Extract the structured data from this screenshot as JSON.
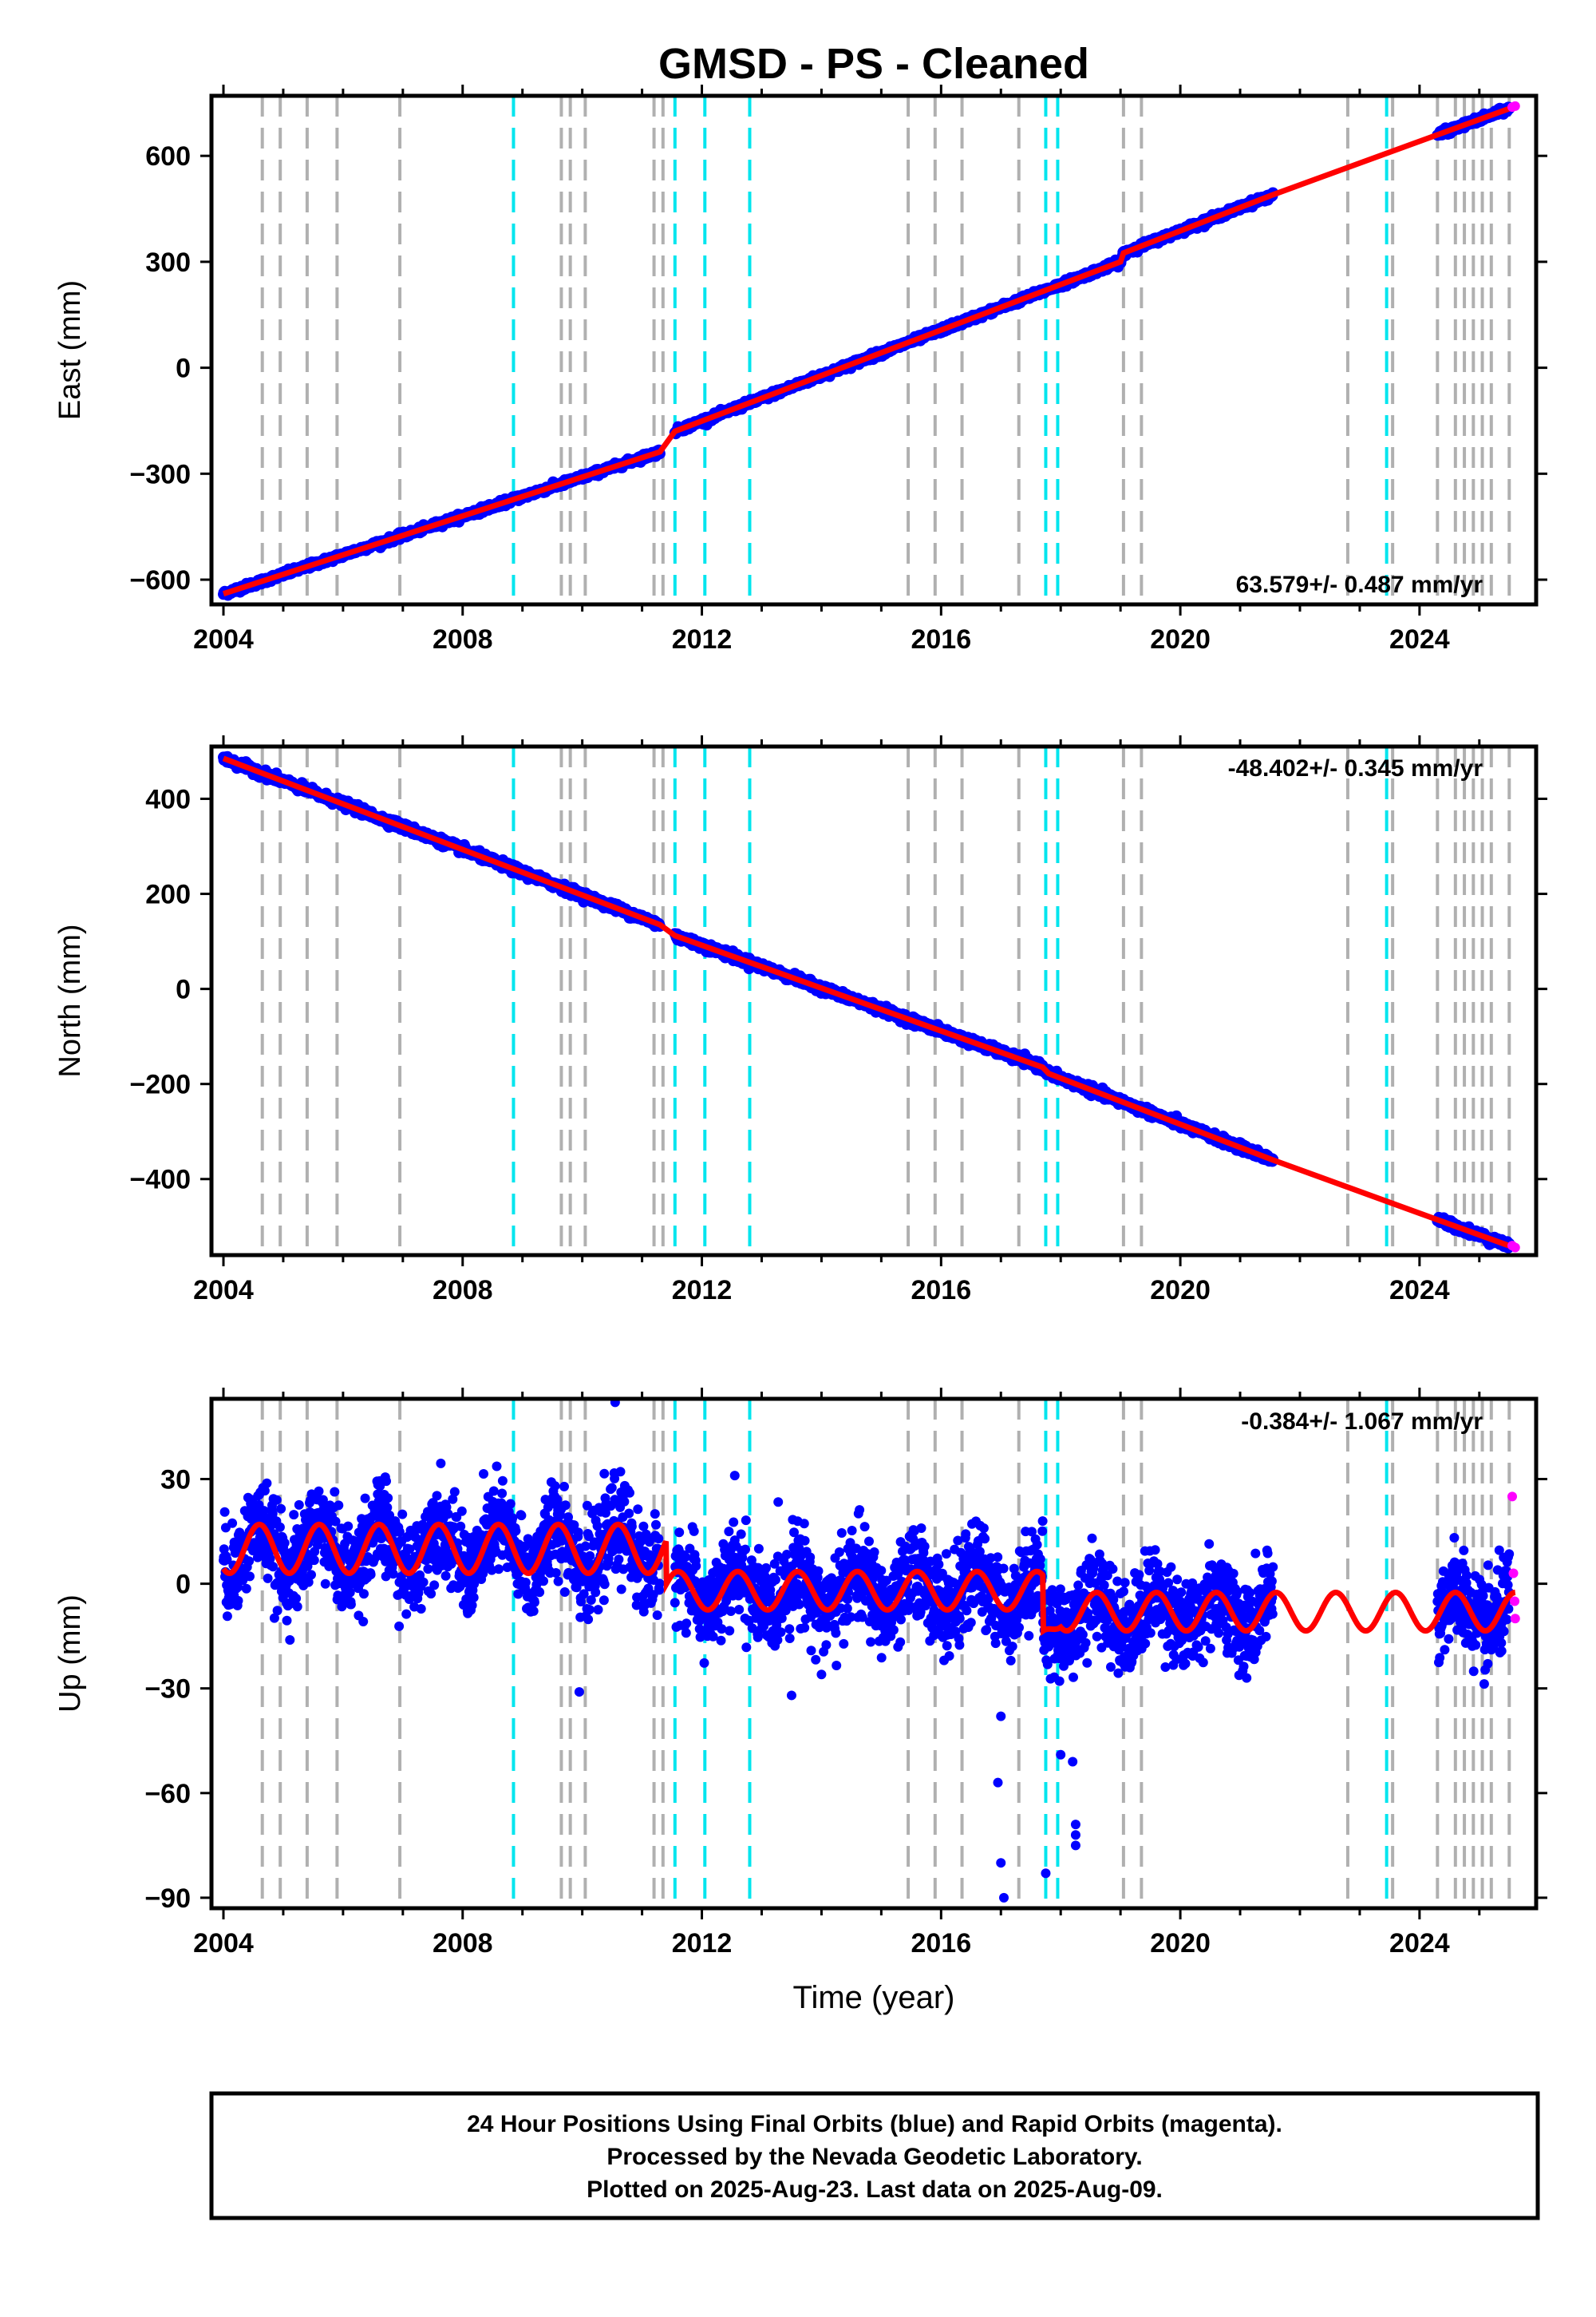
{
  "title": "GMSD  - PS - Cleaned",
  "x_axis_label": "Time (year)",
  "footer": {
    "line1": "24 Hour Positions Using Final Orbits (blue) and Rapid Orbits (magenta).",
    "line2": "Processed by the Nevada Geodetic Laboratory.",
    "line3": "Plotted on 2025-Aug-23. Last data on 2025-Aug-09."
  },
  "colors": {
    "final_orbits": "#0000ff",
    "rapid_orbits": "#ff00ff",
    "model": "#ff0000",
    "equipment_change": "#b0b0b0",
    "earthquake": "#00e5ee"
  },
  "chart_data": [
    {
      "type": "scatter",
      "id": "east",
      "ylabel": "East (mm)",
      "rate_label": "63.579+/- 0.487 mm/yr",
      "xlim": [
        2003.8,
        2025.95
      ],
      "ylim": [
        -670,
        770
      ],
      "xticks": [
        2004,
        2008,
        2012,
        2016,
        2020,
        2024
      ],
      "yticks": [
        -600,
        -300,
        0,
        300,
        600
      ],
      "grid": false,
      "series": [
        {
          "name": "Final Orbits",
          "segments": [
            [
              2004.0,
              2011.3
            ],
            [
              2011.55,
              2021.55
            ],
            [
              2024.3,
              2025.5
            ]
          ]
        },
        {
          "name": "Rapid Orbits",
          "x": [
            2025.55,
            2025.6
          ],
          "y": [
            738,
            741
          ]
        },
        {
          "name": "Model",
          "x": [
            2004.0,
            2011.3,
            2011.55,
            2019.0,
            2019.05,
            2021.55,
            2025.6
          ],
          "y": [
            -640,
            -238,
            -180,
            300,
            325,
            490,
            740
          ]
        }
      ]
    },
    {
      "type": "scatter",
      "id": "north",
      "ylabel": "North (mm)",
      "rate_label": "-48.402+/- 0.345 mm/yr",
      "xlim": [
        2003.8,
        2025.95
      ],
      "ylim": [
        -560,
        510
      ],
      "xticks": [
        2004,
        2008,
        2012,
        2016,
        2020,
        2024
      ],
      "yticks": [
        -400,
        -200,
        0,
        200,
        400
      ],
      "grid": false,
      "series": [
        {
          "name": "Final Orbits",
          "segments": [
            [
              2004.0,
              2011.3
            ],
            [
              2011.55,
              2021.55
            ],
            [
              2024.3,
              2025.5
            ]
          ]
        },
        {
          "name": "Rapid Orbits",
          "x": [
            2025.55,
            2025.6
          ],
          "y": [
            -540,
            -544
          ]
        },
        {
          "name": "Model",
          "x": [
            2004.0,
            2011.3,
            2011.55,
            2017.7,
            2017.8,
            2021.55,
            2025.6
          ],
          "y": [
            485,
            135,
            112,
            -165,
            -178,
            -360,
            -545
          ]
        }
      ]
    },
    {
      "type": "scatter",
      "id": "up",
      "ylabel": "Up (mm)",
      "rate_label": "-0.384+/- 1.067 mm/yr",
      "xlim": [
        2003.8,
        2025.95
      ],
      "ylim": [
        -93,
        53
      ],
      "xticks": [
        2004,
        2008,
        2012,
        2016,
        2020,
        2024
      ],
      "yticks": [
        -90,
        -60,
        -30,
        0,
        30
      ],
      "grid": false,
      "series": [
        {
          "name": "Final Orbits",
          "segments": [
            [
              2004.0,
              2011.3
            ],
            [
              2011.55,
              2021.55
            ],
            [
              2024.3,
              2025.5
            ]
          ]
        },
        {
          "name": "Rapid Orbits",
          "x": [
            2025.55,
            2025.57,
            2025.59,
            2025.6
          ],
          "y": [
            25,
            3,
            -5,
            -10
          ]
        },
        {
          "name": "Model",
          "segments": [
            [
              2004.0,
              2025.6
            ]
          ]
        }
      ],
      "outliers": [
        [
          2017.0,
          -38
        ],
        [
          2016.95,
          -57
        ],
        [
          2017.0,
          -80
        ],
        [
          2017.05,
          -90
        ],
        [
          2017.75,
          -83
        ],
        [
          2018.0,
          -49
        ],
        [
          2018.2,
          -51
        ],
        [
          2018.25,
          -69
        ],
        [
          2018.25,
          -72
        ],
        [
          2018.25,
          -75
        ],
        [
          2009.95,
          -31
        ],
        [
          2010.55,
          52
        ],
        [
          2012.55,
          31
        ],
        [
          2013.5,
          -32
        ],
        [
          2014.0,
          -26
        ]
      ]
    }
  ],
  "equipment_changes": [
    2004.65,
    2004.95,
    2005.4,
    2005.9,
    2006.95,
    2009.65,
    2009.8,
    2010.05,
    2011.2,
    2011.35,
    2015.45,
    2015.9,
    2016.35,
    2017.3,
    2019.05,
    2019.35,
    2022.8,
    2023.55,
    2024.3,
    2024.6,
    2024.75,
    2024.9,
    2025.05,
    2025.2,
    2025.5
  ],
  "earthquakes": [
    2008.85,
    2011.55,
    2012.05,
    2012.8,
    2017.75,
    2017.95,
    2023.45
  ]
}
